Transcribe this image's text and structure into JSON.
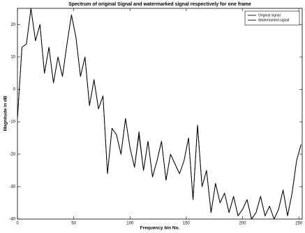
{
  "chart_data": {
    "type": "line",
    "title": "Spectrum of original Signal and watermarked signal respectively for one frame",
    "xlabel": "Frequency bin No.",
    "ylabel": "Magnitude in dB",
    "x": [
      0,
      4,
      8,
      12,
      16,
      20,
      24,
      28,
      32,
      36,
      40,
      44,
      48,
      52,
      56,
      60,
      64,
      68,
      72,
      76,
      80,
      84,
      88,
      92,
      96,
      100,
      104,
      108,
      112,
      116,
      120,
      124,
      128,
      132,
      136,
      140,
      144,
      148,
      152,
      156,
      160,
      164,
      168,
      172,
      176,
      180,
      184,
      188,
      192,
      196,
      200,
      204,
      208,
      212,
      216,
      220,
      224,
      228,
      232,
      236,
      240,
      244,
      248,
      252
    ],
    "series": [
      {
        "name": "Original signal",
        "color": "#000000",
        "values": [
          -9,
          13,
          14,
          25,
          15,
          20,
          5,
          13,
          2,
          10,
          4,
          14,
          23,
          16,
          4,
          10,
          -5,
          3,
          -6,
          -2,
          -26,
          -12,
          -14,
          -20,
          -9,
          -18,
          -24,
          -14,
          -25,
          -16,
          -27,
          -22,
          -16,
          -28,
          -20,
          -23,
          -26,
          -22,
          -15,
          -34,
          -11,
          -30,
          -25,
          -38,
          -29,
          -35,
          -32,
          -38,
          -33,
          -39,
          -37,
          -34,
          -40,
          -38,
          -33,
          -39,
          -36,
          -40,
          -37,
          -31,
          -39,
          -32,
          -22,
          -17
        ]
      },
      {
        "name": "Watermarked signal",
        "color": "#000000",
        "values": [
          -9,
          13,
          14,
          25,
          15,
          20,
          5,
          13,
          2,
          10,
          4,
          14,
          23,
          16,
          4,
          10,
          -5,
          3,
          -6,
          -2,
          -26,
          -12,
          -14,
          -20,
          -9,
          -18,
          -24,
          -13,
          -25,
          -16,
          -27,
          -22,
          -16,
          -28,
          -20,
          -23,
          -26,
          -22,
          -15,
          -34,
          -11,
          -30,
          -25,
          -38,
          -29,
          -35,
          -32,
          -38,
          -33,
          -39,
          -37,
          -34,
          -40,
          -38,
          -33,
          -39,
          -36,
          -40,
          -37,
          -31,
          -39,
          -32,
          -22,
          -17
        ]
      }
    ],
    "xlim": [
      0,
      253
    ],
    "ylim": [
      -40,
      25
    ],
    "xticks": [
      0,
      50,
      100,
      150,
      200,
      250
    ],
    "yticks": [
      -40,
      -30,
      -20,
      -10,
      0,
      10,
      20
    ],
    "grid": false,
    "legend": "upper right"
  }
}
